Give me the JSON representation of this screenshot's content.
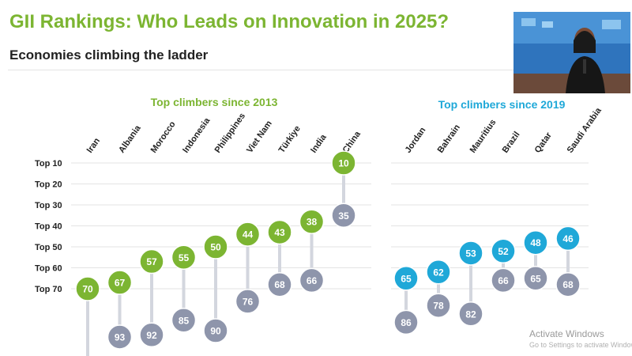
{
  "header": {
    "title": "GII Rankings: Who Leads on Innovation in 2025?",
    "subtitle": "Economies climbing the ladder"
  },
  "colors": {
    "green": "#7cb532",
    "blue": "#1fa8d8",
    "grey": "#8e95ab",
    "connector": "#d3d6de"
  },
  "chart_data": {
    "type": "scatter",
    "y_tick_labels": [
      "Top 10",
      "Top 20",
      "Top 30",
      "Top 40",
      "Top 50",
      "Top 60",
      "Top 70"
    ],
    "y_ticks": [
      10,
      20,
      30,
      40,
      50,
      60,
      70
    ],
    "y_axis": "rank, reversed (1 at top)",
    "grid": true,
    "groups": [
      {
        "label": "Top climbers since 2013",
        "color": "#7cb532",
        "economies": [
          {
            "name": "Iran",
            "rank_2025": 70,
            "rank_then": null
          },
          {
            "name": "Albania",
            "rank_2025": 67,
            "rank_then": 93
          },
          {
            "name": "Morocco",
            "rank_2025": 57,
            "rank_then": 92
          },
          {
            "name": "Indonesia",
            "rank_2025": 55,
            "rank_then": 85
          },
          {
            "name": "Philippines",
            "rank_2025": 50,
            "rank_then": 90
          },
          {
            "name": "Viet Nam",
            "rank_2025": 44,
            "rank_then": 76
          },
          {
            "name": "Türkiye",
            "rank_2025": 43,
            "rank_then": 68
          },
          {
            "name": "India",
            "rank_2025": 38,
            "rank_then": 66
          },
          {
            "name": "China",
            "rank_2025": 10,
            "rank_then": 35
          }
        ]
      },
      {
        "label": "Top climbers since 2019",
        "color": "#1fa8d8",
        "economies": [
          {
            "name": "Jordan",
            "rank_2025": 65,
            "rank_then": 86
          },
          {
            "name": "Bahrain",
            "rank_2025": 62,
            "rank_then": 78
          },
          {
            "name": "Mauritius",
            "rank_2025": 53,
            "rank_then": 82
          },
          {
            "name": "Brazil",
            "rank_2025": 52,
            "rank_then": 66
          },
          {
            "name": "Qatar",
            "rank_2025": 48,
            "rank_then": 65
          },
          {
            "name": "Saudi Arabia",
            "rank_2025": 46,
            "rank_then": 68
          }
        ]
      }
    ]
  },
  "watermark": {
    "line1": "Activate Windows",
    "line2": "Go to Settings to activate Windows."
  }
}
